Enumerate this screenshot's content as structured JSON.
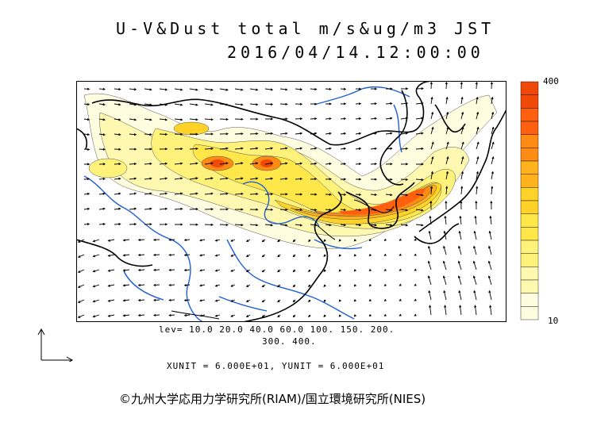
{
  "title": {
    "line1": "U-V&Dust total m/s&ug/m3 JST",
    "line2": "2016/04/14.12:00:00"
  },
  "scale": {
    "max_label": "400",
    "min_label": "10"
  },
  "contour_levels": {
    "line1": "lev= 10.0 20.0 40.0 60.0 100. 150. 200.",
    "line2": "300. 400."
  },
  "units_text": "XUNIT = 6.000E+01, YUNIT = 6.000E+01",
  "credit": "©九州大学応用力学研究所(RIAM)/国立環境研究所(NIES)",
  "colors": {
    "level_fills": [
      "#fffde0",
      "#fff8b0",
      "#fff27a",
      "#ffe74a",
      "#ffd22a",
      "#ffb21c",
      "#ff8a14",
      "#ff6010",
      "#f04808"
    ],
    "coastline": "#000000",
    "rivers": "#1f5fd6",
    "borders": "#000000"
  },
  "icons": [
    "reference-vector-icon",
    "wind-arrow-icon"
  ]
}
